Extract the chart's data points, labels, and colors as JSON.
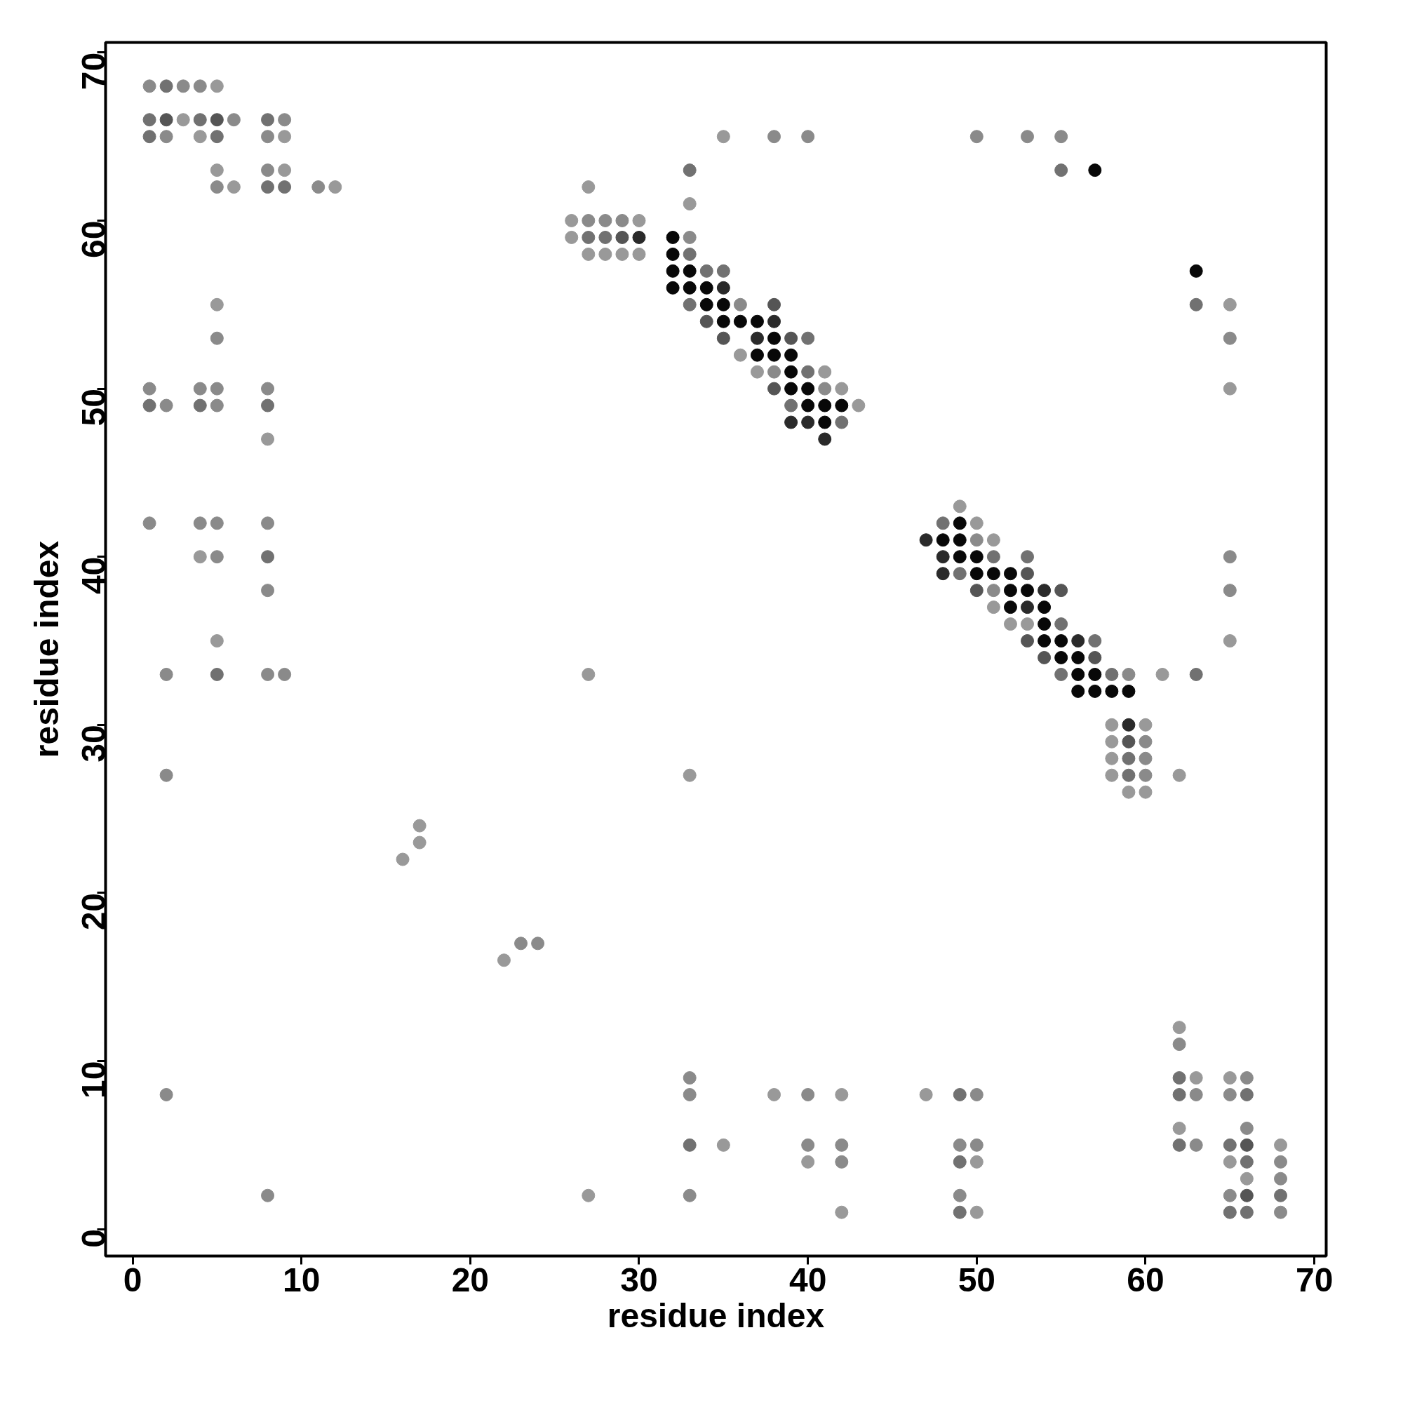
{
  "chart_data": {
    "type": "scatter",
    "xlabel": "residue index",
    "ylabel": "residue index",
    "xlim": [
      -1.6,
      70.7
    ],
    "ylim": [
      -1.6,
      70.6
    ],
    "xticks": [
      0,
      10,
      20,
      30,
      40,
      50,
      60,
      70
    ],
    "yticks": [
      0,
      10,
      20,
      30,
      40,
      50,
      60,
      70
    ],
    "grid": false,
    "marker": "circle",
    "series": [
      {
        "color": "#999999",
        "x": [
          5,
          3,
          4,
          9,
          5,
          9,
          6,
          12,
          5,
          8,
          4,
          5,
          16,
          17,
          17,
          22,
          27,
          33,
          26,
          30,
          26,
          27,
          28,
          29,
          30,
          36,
          37,
          41,
          42,
          43,
          35,
          65,
          65,
          65,
          33,
          27,
          62,
          49,
          50,
          51,
          51,
          52,
          53,
          61,
          58,
          60,
          58,
          58,
          58,
          59,
          60,
          62,
          63,
          65,
          62,
          68,
          65,
          66,
          38,
          42,
          47,
          35,
          50,
          42,
          50,
          27,
          40
        ],
        "values": [
          68,
          66,
          65,
          65,
          63,
          63,
          62,
          62,
          55,
          47,
          40,
          35,
          22,
          24,
          23,
          16,
          62,
          61,
          60,
          60,
          59,
          58,
          58,
          58,
          58,
          52,
          51,
          51,
          50,
          49,
          65,
          55,
          50,
          35,
          27,
          33,
          27,
          43,
          42,
          41,
          37,
          36,
          36,
          33,
          30,
          30,
          29,
          28,
          27,
          26,
          26,
          12,
          9,
          9,
          6,
          5,
          4,
          3,
          8,
          8,
          8,
          5,
          4,
          1,
          1,
          2,
          4
        ]
      },
      {
        "color": "#8a8a8a",
        "x": [
          1,
          3,
          4,
          6,
          9,
          2,
          8,
          8,
          5,
          11,
          5,
          1,
          4,
          5,
          8,
          2,
          5,
          1,
          4,
          5,
          8,
          5,
          8,
          2,
          8,
          9,
          2,
          2,
          8,
          23,
          24,
          27,
          28,
          29,
          33,
          36,
          38,
          41,
          38,
          40,
          50,
          53,
          55,
          65,
          65,
          65,
          50,
          51,
          59,
          60,
          60,
          60,
          62,
          66,
          65,
          63,
          63,
          66,
          68,
          68,
          65,
          68,
          33,
          33,
          40,
          50,
          33,
          49,
          40,
          42,
          49,
          50,
          42
        ],
        "values": [
          68,
          68,
          68,
          66,
          66,
          65,
          65,
          63,
          62,
          62,
          53,
          50,
          50,
          50,
          50,
          49,
          49,
          42,
          42,
          42,
          42,
          40,
          38,
          33,
          33,
          33,
          27,
          8,
          2,
          17,
          17,
          60,
          60,
          60,
          59,
          55,
          51,
          50,
          65,
          65,
          65,
          65,
          65,
          53,
          40,
          38,
          41,
          38,
          33,
          29,
          28,
          27,
          11,
          9,
          8,
          8,
          5,
          6,
          4,
          3,
          2,
          1,
          9,
          8,
          8,
          8,
          2,
          2,
          5,
          5,
          5,
          5,
          4
        ]
      },
      {
        "color": "#717171",
        "x": [
          2,
          1,
          4,
          8,
          1,
          5,
          8,
          9,
          1,
          4,
          8,
          8,
          5,
          27,
          28,
          33,
          34,
          35,
          33,
          40,
          40,
          39,
          42,
          33,
          55,
          63,
          63,
          48,
          51,
          53,
          49,
          55,
          57,
          55,
          58,
          59,
          59,
          62,
          62,
          66,
          62,
          65,
          66,
          68,
          65,
          66,
          49,
          33,
          49,
          49
        ],
        "values": [
          68,
          66,
          66,
          66,
          65,
          65,
          62,
          62,
          49,
          49,
          49,
          40,
          33,
          59,
          59,
          58,
          57,
          57,
          55,
          53,
          51,
          49,
          48,
          63,
          63,
          55,
          33,
          42,
          40,
          40,
          39,
          36,
          35,
          33,
          33,
          28,
          27,
          9,
          8,
          8,
          5,
          5,
          4,
          2,
          1,
          1,
          8,
          5,
          4,
          1
        ]
      },
      {
        "color": "#555555",
        "x": [
          2,
          5,
          29,
          38,
          34,
          35,
          39,
          38,
          53,
          50,
          55,
          53,
          54,
          57,
          59,
          66,
          66
        ],
        "values": [
          66,
          66,
          59,
          55,
          54,
          53,
          53,
          50,
          39,
          38,
          38,
          35,
          34,
          34,
          29,
          5,
          2
        ]
      },
      {
        "color": "#2a2a2a",
        "x": [
          30,
          35,
          38,
          37,
          39,
          40,
          41,
          47,
          48,
          48,
          54,
          53,
          56,
          59
        ],
        "values": [
          59,
          56,
          54,
          53,
          48,
          48,
          47,
          41,
          40,
          39,
          38,
          37,
          35,
          30
        ]
      },
      {
        "color": "#080808",
        "x": [
          32,
          32,
          32,
          33,
          32,
          33,
          34,
          34,
          35,
          35,
          36,
          37,
          38,
          37,
          38,
          39,
          39,
          39,
          40,
          40,
          41,
          42,
          41,
          57,
          63,
          49,
          48,
          49,
          49,
          50,
          50,
          51,
          52,
          52,
          53,
          52,
          54,
          54,
          54,
          55,
          55,
          56,
          56,
          57,
          56,
          57,
          58,
          59
        ],
        "values": [
          59,
          58,
          57,
          57,
          56,
          56,
          56,
          55,
          55,
          54,
          54,
          54,
          53,
          52,
          52,
          52,
          51,
          50,
          50,
          49,
          49,
          49,
          48,
          63,
          57,
          42,
          41,
          41,
          40,
          40,
          39,
          39,
          39,
          38,
          38,
          37,
          37,
          36,
          35,
          35,
          34,
          34,
          33,
          33,
          32,
          32,
          32,
          32
        ]
      }
    ]
  }
}
